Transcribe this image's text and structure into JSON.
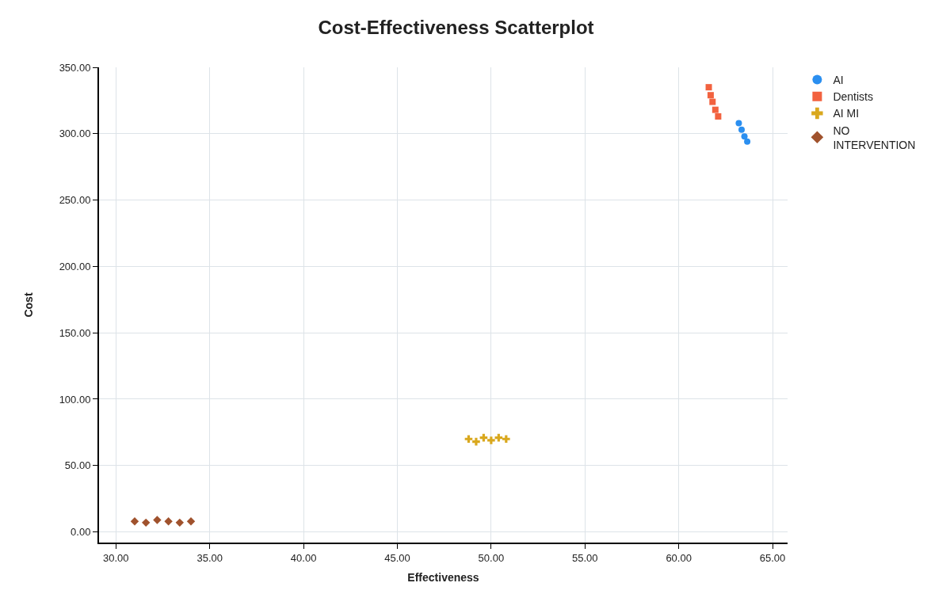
{
  "chart_data": {
    "type": "scatter",
    "title": "Cost-Effectiveness Scatterplot",
    "xlabel": "Effectiveness",
    "ylabel": "Cost",
    "xlim": [
      29.1,
      65.8
    ],
    "ylim": [
      -8,
      350
    ],
    "xticks": [
      {
        "value": 30,
        "label": "30.00"
      },
      {
        "value": 35,
        "label": "35.00"
      },
      {
        "value": 40,
        "label": "40.00"
      },
      {
        "value": 45,
        "label": "45.00"
      },
      {
        "value": 50,
        "label": "50.00"
      },
      {
        "value": 55,
        "label": "55.00"
      },
      {
        "value": 60,
        "label": "60.00"
      },
      {
        "value": 65,
        "label": "65.00"
      }
    ],
    "yticks": [
      {
        "value": 0,
        "label": "0.00"
      },
      {
        "value": 50,
        "label": "50.00"
      },
      {
        "value": 100,
        "label": "100.00"
      },
      {
        "value": 150,
        "label": "150.00"
      },
      {
        "value": 200,
        "label": "200.00"
      },
      {
        "value": 250,
        "label": "250.00"
      },
      {
        "value": 300,
        "label": "300.00"
      },
      {
        "value": 350,
        "label": "350.00"
      }
    ],
    "grid": true,
    "legend": "top right",
    "series": [
      {
        "name": "AI",
        "color": "#2b8ff0",
        "marker": "circle",
        "x": [
          63.2,
          63.35,
          63.5,
          63.65
        ],
        "values": [
          308,
          303,
          298,
          294
        ]
      },
      {
        "name": "Dentists",
        "color": "#f2623f",
        "marker": "square",
        "x": [
          61.6,
          61.7,
          61.8,
          61.95,
          62.1
        ],
        "values": [
          335,
          329,
          324,
          318,
          313
        ]
      },
      {
        "name": "AI MI",
        "color": "#d9a81e",
        "marker": "cross",
        "x": [
          48.8,
          49.2,
          49.6,
          50.0,
          50.4,
          50.8
        ],
        "values": [
          70,
          68,
          71,
          69,
          71,
          70
        ]
      },
      {
        "name": "NO INTERVENTION",
        "color": "#a0522d",
        "marker": "diamond",
        "x": [
          31.0,
          31.6,
          32.2,
          32.8,
          33.4,
          34.0
        ],
        "values": [
          8,
          7,
          9,
          8,
          7,
          8
        ]
      }
    ]
  }
}
